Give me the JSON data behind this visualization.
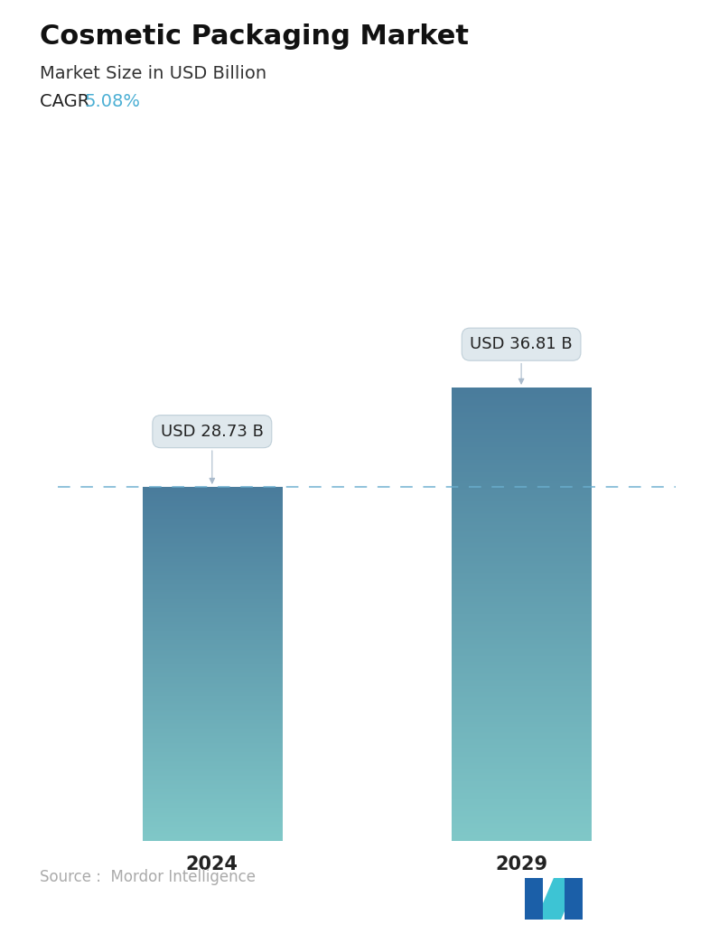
{
  "title": "Cosmetic Packaging Market",
  "subtitle": "Market Size in USD Billion",
  "cagr_label": "CAGR",
  "cagr_value": "5.08%",
  "cagr_color": "#4BAFD4",
  "categories": [
    "2024",
    "2029"
  ],
  "values": [
    28.73,
    36.81
  ],
  "labels": [
    "USD 28.73 B",
    "USD 36.81 B"
  ],
  "bar_top_color": "#4A7C9C",
  "bar_bottom_color": "#80C8C8",
  "dashed_line_color": "#6AAECE",
  "dashed_line_value": 28.73,
  "source_text": "Source :  Mordor Intelligence",
  "source_color": "#AAAAAA",
  "background_color": "#ffffff",
  "title_fontsize": 22,
  "subtitle_fontsize": 14,
  "cagr_fontsize": 14,
  "tick_fontsize": 15,
  "label_fontsize": 13,
  "source_fontsize": 12,
  "ylim_max": 44
}
